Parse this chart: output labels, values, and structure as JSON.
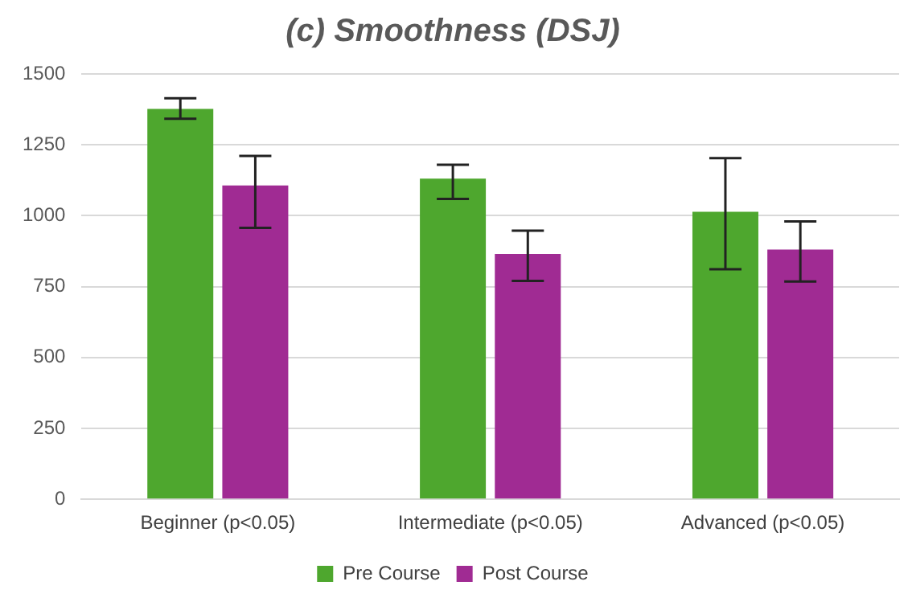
{
  "chart_data": {
    "type": "bar",
    "title": "(c) Smoothness (DSJ)",
    "categories": [
      "Beginner (p<0.05)",
      "Intermediate (p<0.05)",
      "Advanced (p<0.05)"
    ],
    "series": [
      {
        "name": "Pre Course",
        "color": "#4ea72e",
        "values": [
          1377,
          1131,
          1014
        ],
        "errors": [
          [
            1342,
            1414
          ],
          [
            1059,
            1180
          ],
          [
            811,
            1203
          ]
        ]
      },
      {
        "name": "Post Course",
        "color": "#a02b93",
        "values": [
          1107,
          865,
          881
        ],
        "errors": [
          [
            957,
            1211
          ],
          [
            770,
            947
          ],
          [
            768,
            980
          ]
        ]
      }
    ],
    "ylim": [
      0,
      1500
    ],
    "yticks": [
      0,
      250,
      500,
      750,
      1000,
      1250,
      1500
    ],
    "grid": "y",
    "legend": "bottom"
  }
}
